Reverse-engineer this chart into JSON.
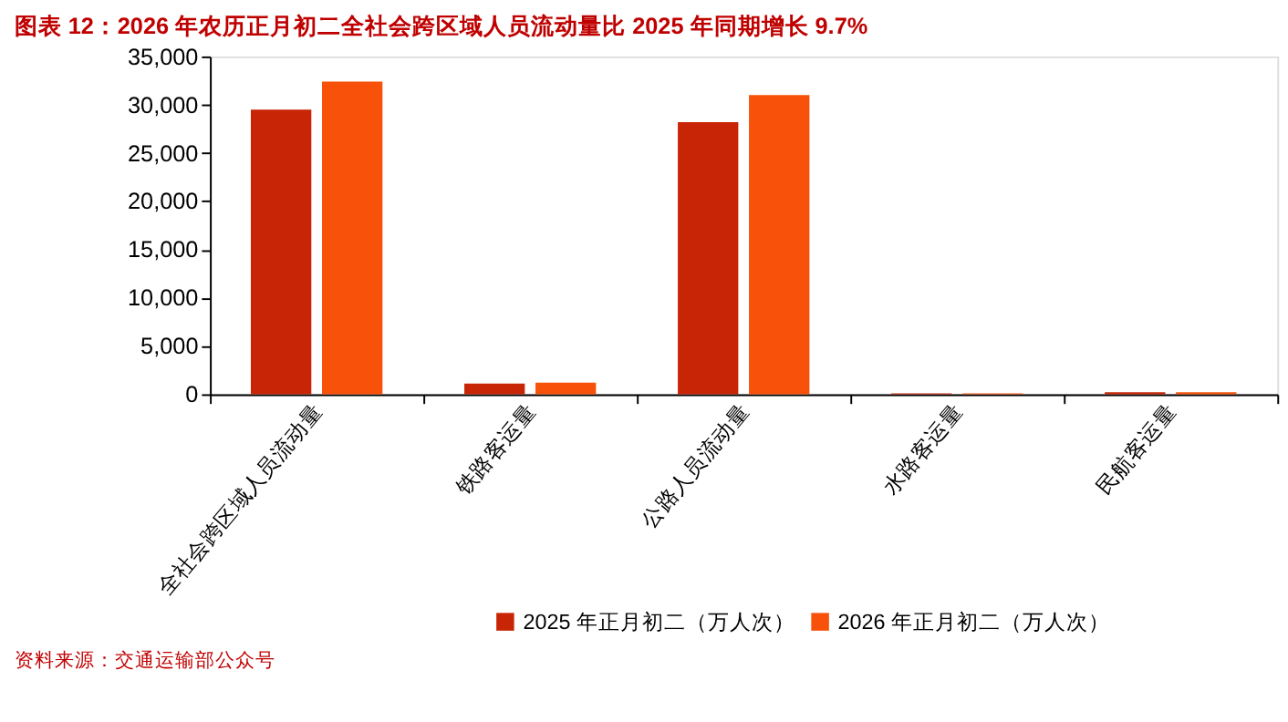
{
  "chart_data": {
    "type": "bar",
    "title": "图表 12：2026 年农历正月初二全社会跨区域人员流动量比 2025 年同期增长 9.7%",
    "categories": [
      "全社会跨区域人员流动量",
      "铁路客运量",
      "公路人员流动量",
      "水路客运量",
      "民航客运量"
    ],
    "series": [
      {
        "name": "2025 年正月初二（万人次）",
        "color": "#c82506",
        "values": [
          29500,
          1100,
          28200,
          100,
          200
        ]
      },
      {
        "name": "2026 年正月初二（万人次）",
        "color": "#f8520a",
        "values": [
          32400,
          1200,
          31000,
          100,
          200
        ]
      }
    ],
    "ylim": [
      0,
      35000
    ],
    "yticks": [
      0,
      {
        "value": 5000,
        "label": "5,000"
      },
      {
        "value": 10000,
        "label": "10,000"
      },
      {
        "value": 15000,
        "label": "15,000"
      },
      {
        "value": 20000,
        "label": "20,000"
      },
      {
        "value": 25000,
        "label": "25,000"
      },
      {
        "value": 30000,
        "label": "30,000"
      },
      {
        "value": 35000,
        "label": "35,000"
      }
    ],
    "grid": false,
    "legend": "bottom",
    "annotations": [
      "资料来源：交通运输部公众号"
    ]
  }
}
